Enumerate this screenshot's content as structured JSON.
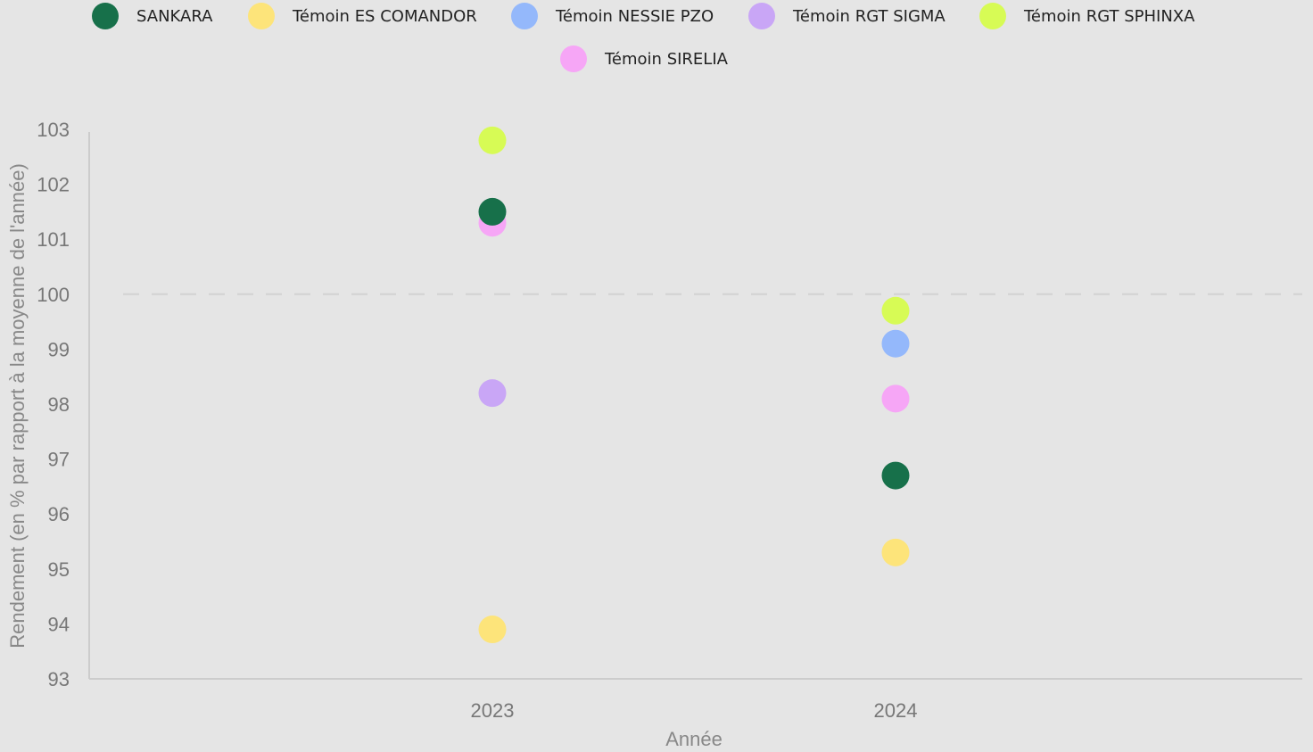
{
  "chart_data": {
    "type": "scatter",
    "title": "",
    "xlabel": "Année",
    "ylabel": "Rendement (en % par rapport à la moyenne de l'année)",
    "categories": [
      "2023",
      "2024"
    ],
    "ylim": [
      93,
      103
    ],
    "yticks": [
      "93",
      "94",
      "95",
      "96",
      "97",
      "98",
      "99",
      "100",
      "101",
      "102",
      "103"
    ],
    "reference_line": {
      "y": 100,
      "style": "dashed"
    },
    "legend_position": "top",
    "series": [
      {
        "name": "SANKARA",
        "color": "#17704a",
        "values": [
          101.5,
          96.7
        ]
      },
      {
        "name": "Témoin ES COMANDOR",
        "color": "#fde47a",
        "values": [
          93.9,
          95.3
        ]
      },
      {
        "name": "Témoin NESSIE PZO",
        "color": "#94b8fb",
        "values": [
          null,
          99.1
        ]
      },
      {
        "name": "Témoin RGT SIGMA",
        "color": "#c9a6f6",
        "values": [
          98.2,
          null
        ]
      },
      {
        "name": "Témoin RGT SPHINXA",
        "color": "#d7fb55",
        "values": [
          102.8,
          99.7
        ]
      },
      {
        "name": "Témoin SIRELIA",
        "color": "#f6a6f6",
        "values": [
          101.3,
          98.1
        ]
      }
    ],
    "draw_order": [
      "Témoin SIRELIA",
      "Témoin ES COMANDOR",
      "Témoin NESSIE PZO",
      "Témoin RGT SIGMA",
      "Témoin RGT SPHINXA",
      "SANKARA"
    ]
  }
}
